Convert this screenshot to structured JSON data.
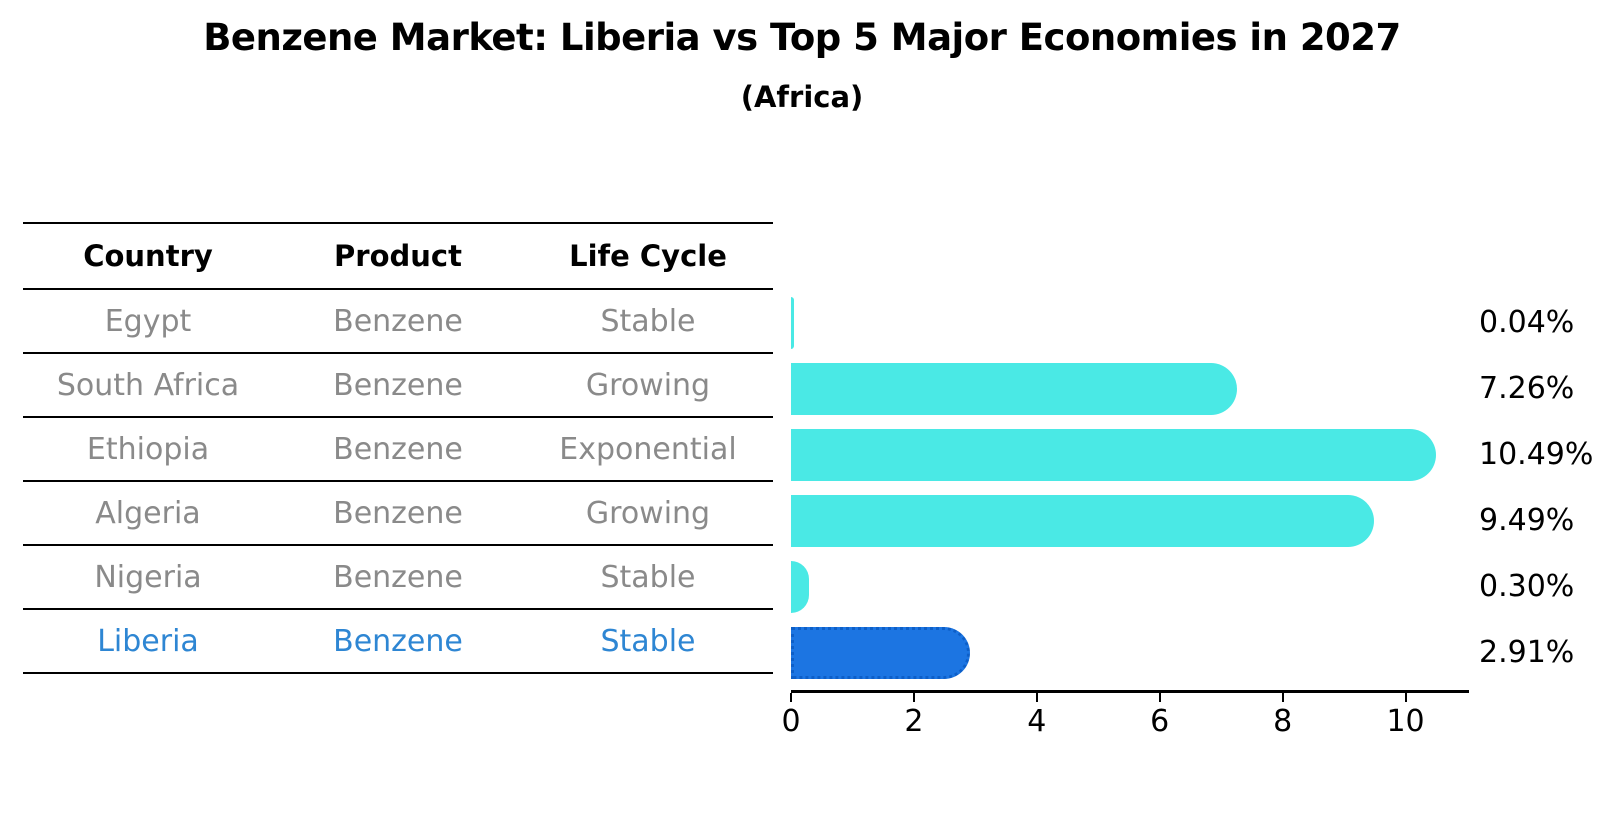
{
  "title": "Benzene Market: Liberia vs Top 5 Major Economies in 2027",
  "subtitle": "(Africa)",
  "colors": {
    "bar_default": "#4AE9E5",
    "bar_highlight": "#1C75E2",
    "bar_highlight_border": "#0D5FC8",
    "row_text_gray": "#8A8A8A",
    "highlight_text_blue": "#2E86D3",
    "axis_black": "#000000"
  },
  "table": {
    "headers": [
      "Country",
      "Product",
      "Life Cycle"
    ],
    "rows": [
      {
        "country": "Egypt",
        "product": "Benzene",
        "life_cycle": "Stable",
        "highlight": false
      },
      {
        "country": "South Africa",
        "product": "Benzene",
        "life_cycle": "Growing",
        "highlight": false
      },
      {
        "country": "Ethiopia",
        "product": "Benzene",
        "life_cycle": "Exponential",
        "highlight": false
      },
      {
        "country": "Algeria",
        "product": "Benzene",
        "life_cycle": "Growing",
        "highlight": false
      },
      {
        "country": "Nigeria",
        "product": "Benzene",
        "life_cycle": "Stable",
        "highlight": false
      },
      {
        "country": "Liberia",
        "product": "Benzene",
        "life_cycle": "Stable",
        "highlight": true
      }
    ]
  },
  "chart_data": {
    "type": "bar",
    "orientation": "horizontal",
    "title": "Benzene Market: Liberia vs Top 5 Major Economies in 2027",
    "subtitle": "(Africa)",
    "categories": [
      "Egypt",
      "South Africa",
      "Ethiopia",
      "Algeria",
      "Nigeria",
      "Liberia"
    ],
    "values": [
      0.04,
      7.26,
      10.49,
      9.49,
      0.3,
      2.91
    ],
    "value_labels": [
      "0.04%",
      "7.26%",
      "10.49%",
      "9.49%",
      "0.30%",
      "2.91%"
    ],
    "highlight_index": 5,
    "xlim": [
      0,
      11
    ],
    "x_ticks": [
      0,
      2,
      4,
      6,
      8,
      10
    ],
    "grid": false,
    "legend": false
  }
}
